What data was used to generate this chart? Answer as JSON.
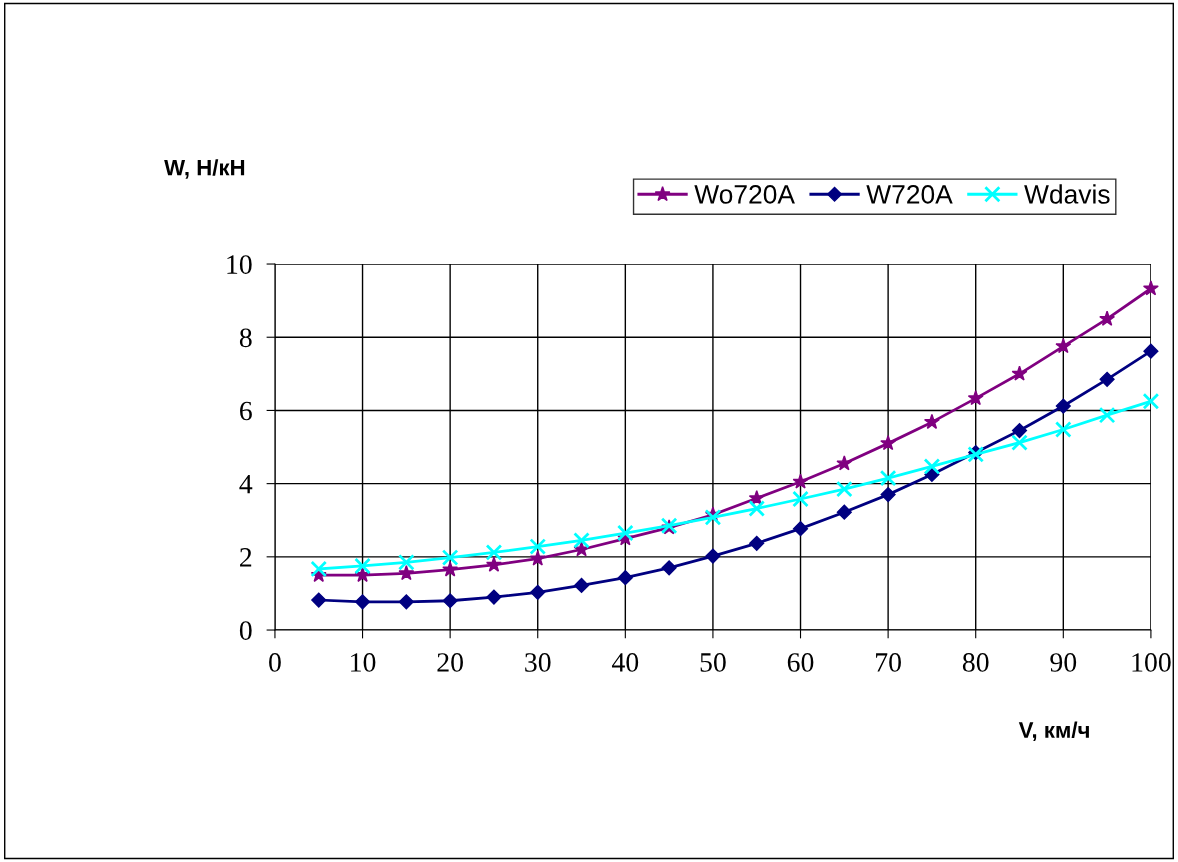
{
  "chart_data": {
    "type": "line",
    "xlabel": "V, км/ч",
    "ylabel": "W, Н/кН",
    "x": [
      5,
      10,
      15,
      20,
      25,
      30,
      35,
      40,
      45,
      50,
      55,
      60,
      65,
      70,
      75,
      80,
      85,
      90,
      95,
      100
    ],
    "series": [
      {
        "name": "Wo720A",
        "color": "#800080",
        "marker": "star",
        "values": [
          1.5,
          1.5,
          1.55,
          1.65,
          1.78,
          1.95,
          2.2,
          2.5,
          2.8,
          3.15,
          3.6,
          4.05,
          4.55,
          5.1,
          5.68,
          6.33,
          7.0,
          7.75,
          8.5,
          9.33
        ]
      },
      {
        "name": "W720A",
        "color": "#000080",
        "marker": "diamond",
        "values": [
          0.82,
          0.77,
          0.77,
          0.8,
          0.9,
          1.03,
          1.22,
          1.43,
          1.7,
          2.02,
          2.37,
          2.77,
          3.22,
          3.7,
          4.25,
          4.85,
          5.45,
          6.12,
          6.85,
          7.62
        ]
      },
      {
        "name": "Wdavis",
        "color": "#00ffff",
        "marker": "cross",
        "values": [
          1.67,
          1.75,
          1.85,
          1.98,
          2.12,
          2.28,
          2.45,
          2.65,
          2.85,
          3.08,
          3.32,
          3.58,
          3.85,
          4.15,
          4.47,
          4.8,
          5.12,
          5.48,
          5.87,
          6.25
        ]
      }
    ],
    "xlim": [
      0,
      100
    ],
    "xticks": [
      0,
      10,
      20,
      30,
      40,
      50,
      60,
      70,
      80,
      90,
      100
    ],
    "ylim": [
      0,
      10
    ],
    "yticks": [
      0,
      2,
      4,
      6,
      8,
      10
    ],
    "grid": true,
    "legend": "top right",
    "line_style": "solid"
  }
}
